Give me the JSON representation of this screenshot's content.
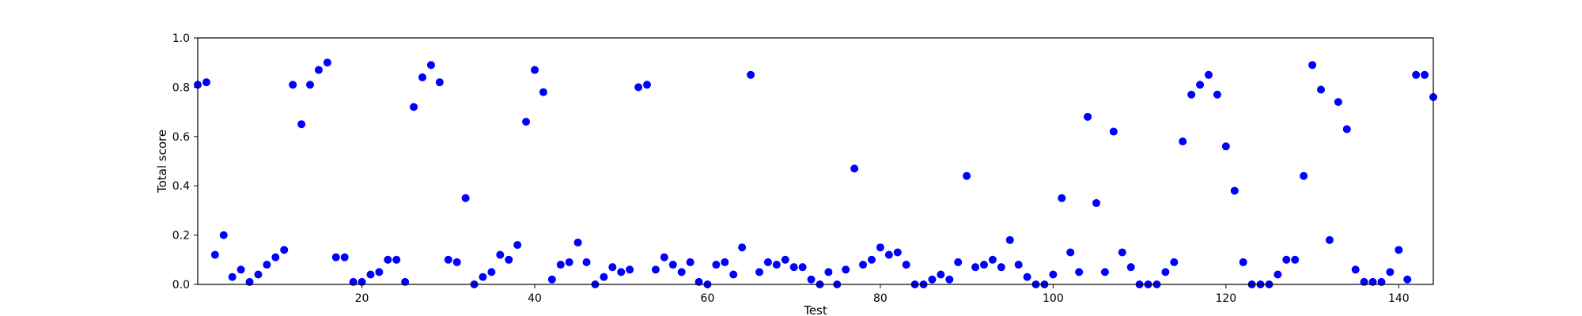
{
  "chart_data": {
    "type": "scatter",
    "title": "",
    "xlabel": "Test",
    "ylabel": "Total score",
    "xlim": [
      1,
      144
    ],
    "ylim": [
      0,
      1.0
    ],
    "xticks": [
      20,
      40,
      60,
      80,
      100,
      120,
      140
    ],
    "yticks": [
      "0.0",
      "0.2",
      "0.4",
      "0.6",
      "0.8",
      "1.0"
    ],
    "grid": false,
    "marker_color": "#0000ff",
    "x": [
      1,
      2,
      3,
      4,
      5,
      6,
      7,
      8,
      9,
      10,
      11,
      12,
      13,
      14,
      15,
      16,
      17,
      18,
      19,
      20,
      21,
      22,
      23,
      24,
      25,
      26,
      27,
      28,
      29,
      30,
      31,
      32,
      33,
      34,
      35,
      36,
      37,
      38,
      39,
      40,
      41,
      42,
      43,
      44,
      45,
      46,
      47,
      48,
      49,
      50,
      51,
      52,
      53,
      54,
      55,
      56,
      57,
      58,
      59,
      60,
      61,
      62,
      63,
      64,
      65,
      66,
      67,
      68,
      69,
      70,
      71,
      72,
      73,
      74,
      75,
      76,
      77,
      78,
      79,
      80,
      81,
      82,
      83,
      84,
      85,
      86,
      87,
      88,
      89,
      90,
      91,
      92,
      93,
      94,
      95,
      96,
      97,
      98,
      99,
      100,
      101,
      102,
      103,
      104,
      105,
      106,
      107,
      108,
      109,
      110,
      111,
      112,
      113,
      114,
      115,
      116,
      117,
      118,
      119,
      120,
      121,
      122,
      123,
      124,
      125,
      126,
      127,
      128,
      129,
      130,
      131,
      132,
      133,
      134,
      135,
      136,
      137,
      138,
      139,
      140,
      141,
      142,
      143,
      144
    ],
    "y": [
      0.81,
      0.82,
      0.12,
      0.2,
      0.03,
      0.06,
      0.01,
      0.04,
      0.08,
      0.11,
      0.14,
      0.81,
      0.65,
      0.81,
      0.87,
      0.9,
      0.11,
      0.11,
      0.01,
      0.01,
      0.04,
      0.05,
      0.1,
      0.1,
      0.01,
      0.72,
      0.84,
      0.89,
      0.82,
      0.1,
      0.09,
      0.35,
      0.0,
      0.03,
      0.05,
      0.12,
      0.1,
      0.16,
      0.66,
      0.87,
      0.78,
      0.02,
      0.08,
      0.09,
      0.17,
      0.09,
      0.0,
      0.03,
      0.07,
      0.05,
      0.06,
      0.8,
      0.81,
      0.06,
      0.11,
      0.08,
      0.05,
      0.09,
      0.01,
      0.0,
      0.08,
      0.09,
      0.04,
      0.15,
      0.85,
      0.05,
      0.09,
      0.08,
      0.1,
      0.07,
      0.07,
      0.02,
      0.0,
      0.05,
      0.0,
      0.06,
      0.47,
      0.08,
      0.1,
      0.15,
      0.12,
      0.13,
      0.08,
      0.0,
      0.0,
      0.02,
      0.04,
      0.02,
      0.09,
      0.44,
      0.07,
      0.08,
      0.1,
      0.07,
      0.18,
      0.08,
      0.03,
      0.0,
      0.0,
      0.04,
      0.35,
      0.13,
      0.05,
      0.68,
      0.33,
      0.05,
      0.62,
      0.13,
      0.07,
      0.0,
      0.0,
      0.0,
      0.05,
      0.09,
      0.58,
      0.77,
      0.81,
      0.85,
      0.77,
      0.56,
      0.38,
      0.09,
      0.0,
      0.0,
      0.0,
      0.04,
      0.1,
      0.1,
      0.44,
      0.89,
      0.79,
      0.18,
      0.74,
      0.63,
      0.06,
      0.01,
      0.01,
      0.01,
      0.05,
      0.14,
      0.02,
      0.85,
      0.85,
      0.76
    ]
  }
}
